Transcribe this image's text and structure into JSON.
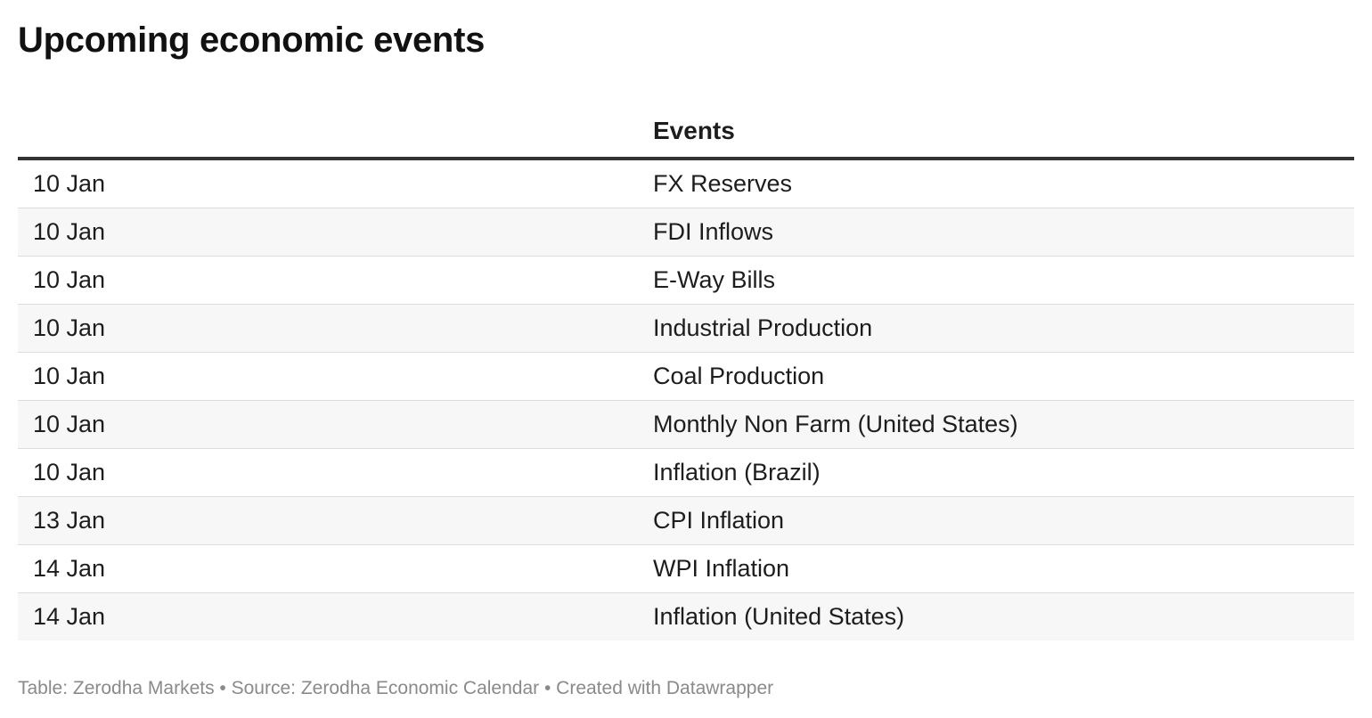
{
  "title": "Upcoming economic events",
  "chart_data": {
    "type": "table",
    "columns": [
      "",
      "Events"
    ],
    "rows": [
      {
        "date": "10 Jan",
        "event": "FX Reserves"
      },
      {
        "date": "10 Jan",
        "event": "FDI Inflows"
      },
      {
        "date": "10 Jan",
        "event": "E-Way Bills"
      },
      {
        "date": "10 Jan",
        "event": "Industrial Production"
      },
      {
        "date": "10 Jan",
        "event": "Coal Production"
      },
      {
        "date": "10 Jan",
        "event": "Monthly Non Farm (United States)"
      },
      {
        "date": "10 Jan",
        "event": "Inflation (Brazil)"
      },
      {
        "date": "13 Jan",
        "event": "CPI Inflation"
      },
      {
        "date": "14 Jan",
        "event": "WPI Inflation"
      },
      {
        "date": "14 Jan",
        "event": "Inflation (United States)"
      }
    ]
  },
  "footer": "Table: Zerodha Markets • Source: Zerodha Economic Calendar • Created with Datawrapper"
}
